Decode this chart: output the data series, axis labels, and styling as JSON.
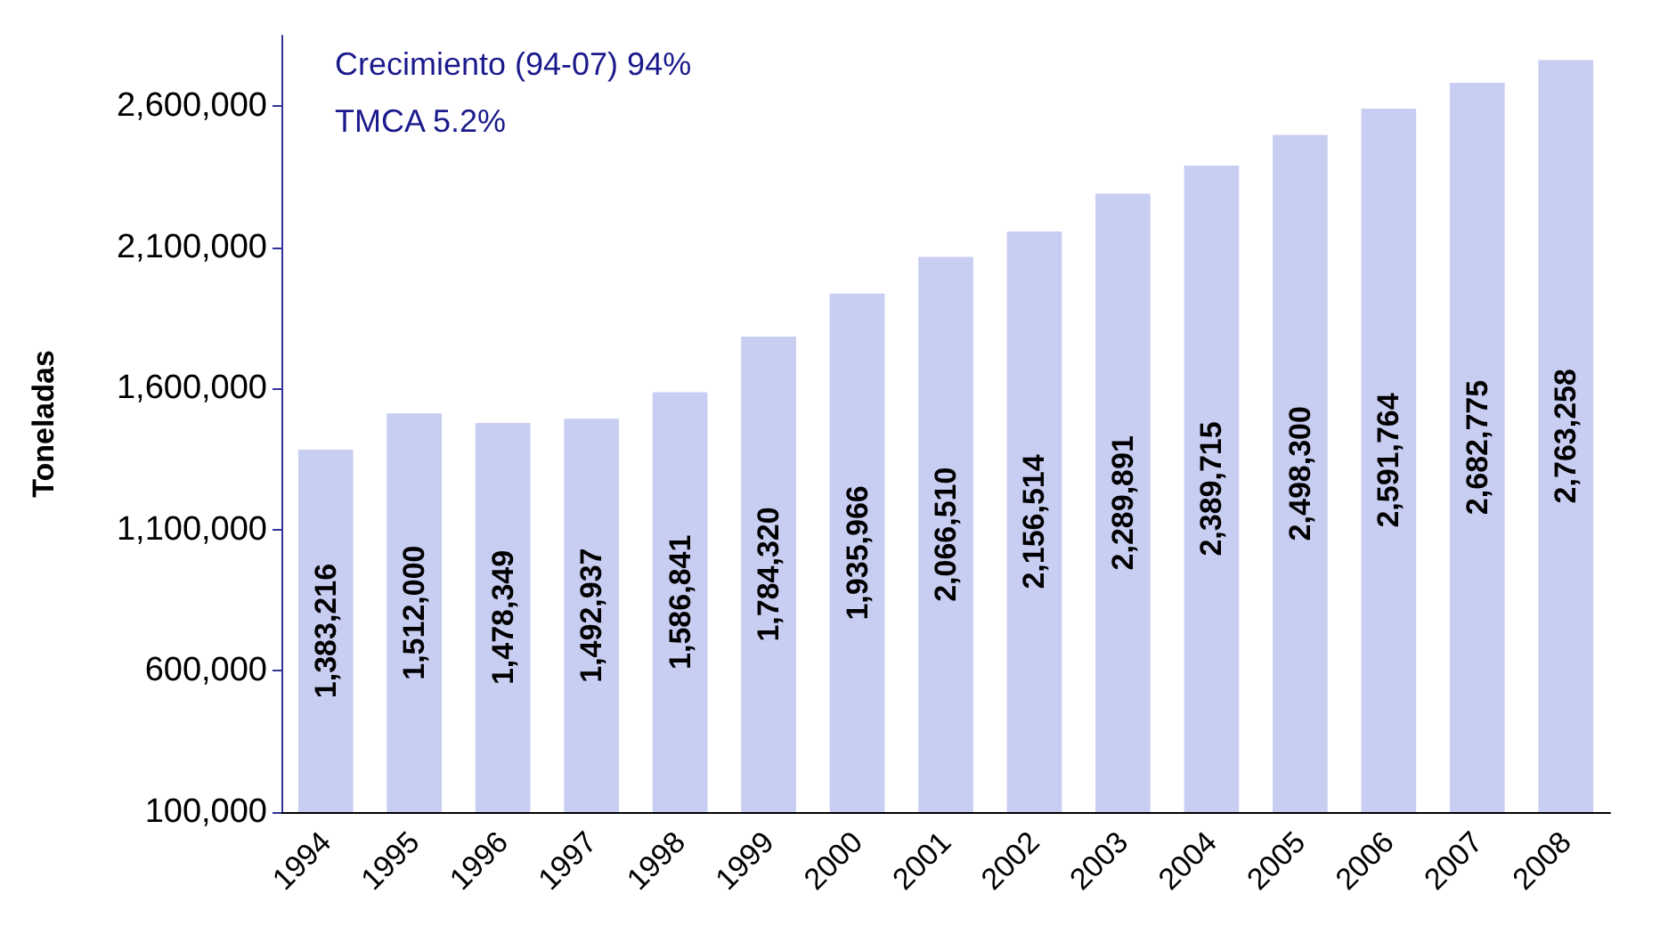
{
  "chart_data": {
    "type": "bar",
    "ylabel": "Toneladas",
    "annotations": [
      "Crecimiento (94-07) 94%",
      "TMCA 5.2%"
    ],
    "categories": [
      "1994",
      "1995",
      "1996",
      "1997",
      "1998",
      "1999",
      "2000",
      "2001",
      "2002",
      "2003",
      "2004",
      "2005",
      "2006",
      "2007",
      "2008"
    ],
    "values": [
      1383216,
      1512000,
      1478349,
      1492937,
      1586841,
      1784320,
      1935966,
      2066510,
      2156514,
      2289891,
      2389715,
      2498300,
      2591764,
      2682775,
      2763258
    ],
    "value_labels": [
      "1,383,216",
      "1,512,000",
      "1,478,349",
      "1,492,937",
      "1,586,841",
      "1,784,320",
      "1,935,966",
      "2,066,510",
      "2,156,514",
      "2,289,891",
      "2,389,715",
      "2,498,300",
      "2,591,764",
      "2,682,775",
      "2,763,258"
    ],
    "color": "#c8cdf2",
    "ylim": [
      100000,
      2850000
    ],
    "yticks": [
      {
        "value": 100000,
        "label": "100,000"
      },
      {
        "value": 600000,
        "label": "600,000"
      },
      {
        "value": 1100000,
        "label": "1,100,000"
      },
      {
        "value": 1600000,
        "label": "1,600,000"
      },
      {
        "value": 2100000,
        "label": "2,100,000"
      },
      {
        "value": 2600000,
        "label": "2,600,000"
      }
    ],
    "grid": false
  }
}
